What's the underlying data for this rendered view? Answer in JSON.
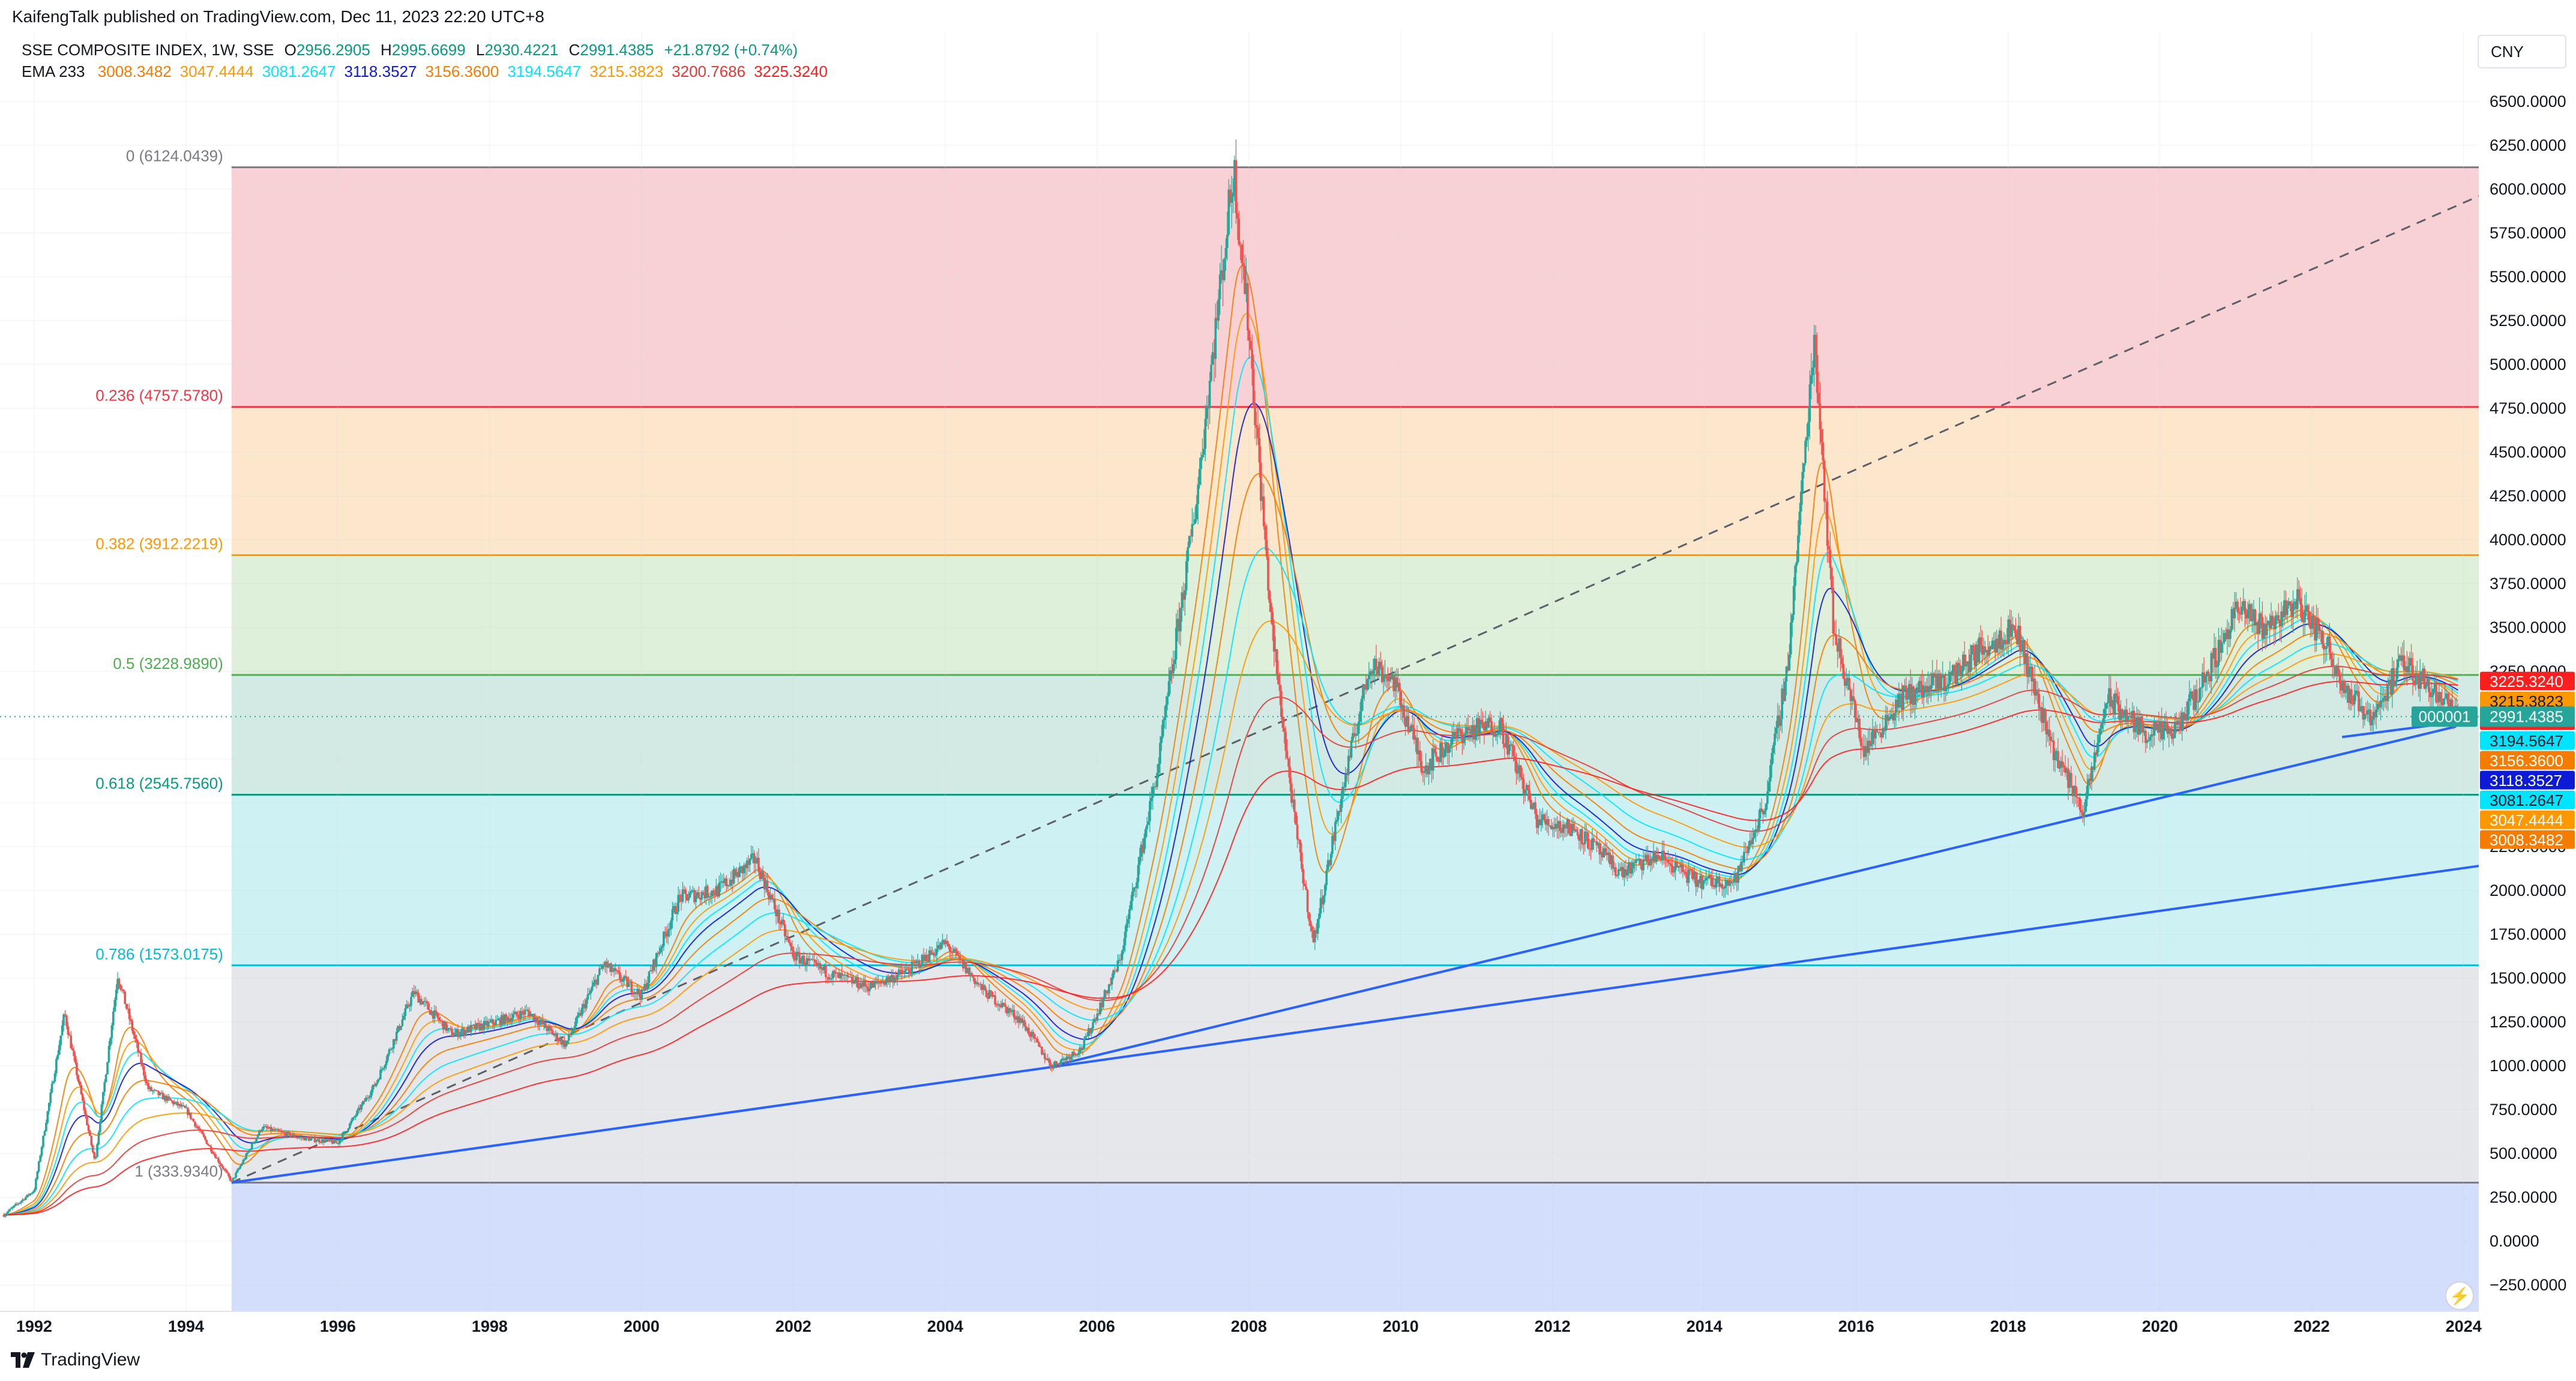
{
  "header": {
    "published_by": "KaifengTalk published on TradingView.com, Dec 11, 2023 22:20 UTC+8"
  },
  "legend": {
    "symbol": "SSE COMPOSITE INDEX, 1W, SSE",
    "open_key": "O",
    "open": "2956.2905",
    "high_key": "H",
    "high": "2995.6699",
    "low_key": "L",
    "low": "2930.4221",
    "close_key": "C",
    "close": "2991.4385",
    "change": "+21.8792 (+0.74%)",
    "ema_label": "EMA 233",
    "ema_values": [
      {
        "value": "3008.3482",
        "color": "#f57c00"
      },
      {
        "value": "3047.4444",
        "color": "#ff9800"
      },
      {
        "value": "3081.2647",
        "color": "#00e5ff"
      },
      {
        "value": "3118.3527",
        "color": "#0d1bd6"
      },
      {
        "value": "3156.3600",
        "color": "#f57c00"
      },
      {
        "value": "3194.5647",
        "color": "#00e5ff"
      },
      {
        "value": "3215.3823",
        "color": "#ff9800"
      },
      {
        "value": "3200.7686",
        "color": "#e53935"
      },
      {
        "value": "3225.3240",
        "color": "#ff1e1e"
      }
    ]
  },
  "currency": "CNY",
  "brand": "TradingView",
  "chart_data": {
    "type": "candlestick",
    "symbol": "SSE COMPOSITE INDEX",
    "interval": "1W",
    "currency": "CNY",
    "x_ticks": [
      "1992",
      "1994",
      "1996",
      "1998",
      "2000",
      "2002",
      "2004",
      "2006",
      "2008",
      "2010",
      "2012",
      "2014",
      "2016",
      "2018",
      "2020",
      "2022",
      "2024"
    ],
    "x_tick_values": [
      1992,
      1994,
      1996,
      1998,
      2000,
      2002,
      2004,
      2006,
      2008,
      2010,
      2012,
      2014,
      2016,
      2018,
      2020,
      2022,
      2024
    ],
    "xlim": [
      1991.55,
      2024.2
    ],
    "ylim": [
      -400,
      6900
    ],
    "y_ticks": [
      "6500.0000",
      "6250.0000",
      "6000.0000",
      "5750.0000",
      "5500.0000",
      "5250.0000",
      "5000.0000",
      "4750.0000",
      "4500.0000",
      "4250.0000",
      "4000.0000",
      "3750.0000",
      "3500.0000",
      "3250.0000",
      "3000.0000",
      "2750.0000",
      "2500.0000",
      "2250.0000",
      "2000.0000",
      "1750.0000",
      "1500.0000",
      "1250.0000",
      "1000.0000",
      "750.0000",
      "500.0000",
      "250.0000",
      "0.0000",
      "−250.0000"
    ],
    "y_tick_values": [
      6500,
      6250,
      6000,
      5750,
      5500,
      5250,
      5000,
      4750,
      4500,
      4250,
      4000,
      3750,
      3500,
      3250,
      3000,
      2750,
      2500,
      2250,
      2000,
      1750,
      1500,
      1250,
      1000,
      750,
      500,
      250,
      0,
      -250
    ],
    "fib_retracement": {
      "x_start": 1994.6,
      "levels": [
        {
          "label": "0 (6124.0439)",
          "value": 6124.0439,
          "line": "#787b86",
          "fill": "#f7c9ce"
        },
        {
          "label": "0.236 (4757.5780)",
          "value": 4757.578,
          "line": "#f23645",
          "fill": "#fde3c3"
        },
        {
          "label": "0.382 (3912.2219)",
          "value": 3912.2219,
          "line": "#ff9800",
          "fill": "#d8ecd3"
        },
        {
          "label": "0.5 (3228.9890)",
          "value": 3228.989,
          "line": "#4caf50",
          "fill": "#cbe6df"
        },
        {
          "label": "0.618 (2545.7560)",
          "value": 2545.756,
          "line": "#089981",
          "fill": "#c6eef2"
        },
        {
          "label": "0.786 (1573.0175)",
          "value": 1573.0175,
          "line": "#00bcd4",
          "fill": "#e2e3e6"
        },
        {
          "label": "1 (333.9340)",
          "value": 333.934,
          "line": "#787b86",
          "fill": "#cbd7fb"
        }
      ]
    },
    "trendlines": [
      {
        "x1": 1994.6,
        "y1": 334,
        "x2": 2024.2,
        "y2": 5960,
        "style": "dashed",
        "color": "#5d606b"
      },
      {
        "x1": 1994.6,
        "y1": 334,
        "x2": 2024.2,
        "y2": 2140,
        "style": "solid",
        "color": "#2962ff"
      },
      {
        "x1": 2005.4,
        "y1": 998,
        "x2": 2023.9,
        "y2": 2935,
        "style": "solid",
        "color": "#2962ff"
      },
      {
        "x1": 2022.4,
        "y1": 2875,
        "x2": 2023.9,
        "y2": 2960,
        "style": "solid",
        "color": "#2962ff"
      }
    ],
    "price_series": {
      "x": [
        1991.6,
        1992.0,
        1992.4,
        1992.8,
        1993.1,
        1993.5,
        1994.0,
        1994.6,
        1995.0,
        1995.5,
        1996.0,
        1996.5,
        1997.0,
        1997.5,
        1998.0,
        1998.5,
        1999.0,
        1999.5,
        2000.0,
        2000.5,
        2001.0,
        2001.5,
        2002.0,
        2002.5,
        2003.0,
        2003.5,
        2004.0,
        2004.5,
        2005.0,
        2005.4,
        2005.8,
        2006.3,
        2006.8,
        2007.3,
        2007.8,
        2008.0,
        2008.3,
        2008.6,
        2008.85,
        2009.2,
        2009.6,
        2009.9,
        2010.3,
        2010.8,
        2011.3,
        2011.8,
        2012.3,
        2012.9,
        2013.4,
        2013.9,
        2014.4,
        2014.8,
        2015.1,
        2015.45,
        2015.7,
        2016.1,
        2016.6,
        2017.2,
        2017.7,
        2018.1,
        2018.6,
        2019.0,
        2019.3,
        2019.8,
        2020.2,
        2020.7,
        2021.0,
        2021.4,
        2021.8,
        2022.2,
        2022.5,
        2022.8,
        2023.2,
        2023.6,
        2023.94
      ],
      "y": [
        150,
        290,
        1300,
        450,
        1520,
        870,
        750,
        340,
        650,
        590,
        560,
        900,
        1420,
        1180,
        1240,
        1310,
        1120,
        1580,
        1400,
        1960,
        2000,
        2180,
        1630,
        1520,
        1450,
        1540,
        1700,
        1430,
        1260,
        998,
        1100,
        1600,
        2700,
        4200,
        6124,
        5200,
        3500,
        2400,
        1700,
        2500,
        3300,
        3200,
        2700,
        2900,
        2950,
        2400,
        2350,
        2100,
        2200,
        2050,
        2050,
        2500,
        3300,
        5178,
        3500,
        2800,
        3100,
        3200,
        3400,
        3500,
        2800,
        2450,
        3100,
        2900,
        2900,
        3300,
        3600,
        3500,
        3650,
        3400,
        3100,
        3000,
        3300,
        3150,
        2991.4385
      ]
    },
    "ema_lines": [
      {
        "color": "#f57c00"
      },
      {
        "color": "#ff9800"
      },
      {
        "color": "#00e5ff"
      },
      {
        "color": "#0d1bd6"
      },
      {
        "color": "#f57c00"
      },
      {
        "color": "#00e5ff"
      },
      {
        "color": "#ff9800"
      },
      {
        "color": "#e53935"
      },
      {
        "color": "#ff1e1e"
      }
    ],
    "last_price": {
      "value": 2991.4385,
      "label": "2991.4385",
      "countdown": "000001",
      "color": "#26a69a"
    },
    "price_tags": [
      {
        "label": "3225.3240",
        "value": 3225.324,
        "bg": "#ff1e1e",
        "fg": "#ffffff"
      },
      {
        "label": "3215.3823",
        "value": 3215.3823,
        "bg": "#ff9800",
        "fg": "#131722"
      },
      {
        "label": "3200.7686",
        "value": 3200.7686,
        "bg": "#ff1e1e",
        "fg": "#ffffff"
      },
      {
        "label": "3194.5647",
        "value": 3194.5647,
        "bg": "#00e5ff",
        "fg": "#131722"
      },
      {
        "label": "3156.3600",
        "value": 3156.36,
        "bg": "#f57c00",
        "fg": "#ffffff"
      },
      {
        "label": "3118.3527",
        "value": 3118.3527,
        "bg": "#0d1bd6",
        "fg": "#ffffff"
      },
      {
        "label": "3081.2647",
        "value": 3081.2647,
        "bg": "#00e5ff",
        "fg": "#131722"
      },
      {
        "label": "3047.4444",
        "value": 3047.4444,
        "bg": "#ff9800",
        "fg": "#ffffff"
      },
      {
        "label": "3008.3482",
        "value": 3008.3482,
        "bg": "#f57c00",
        "fg": "#ffffff"
      }
    ]
  }
}
